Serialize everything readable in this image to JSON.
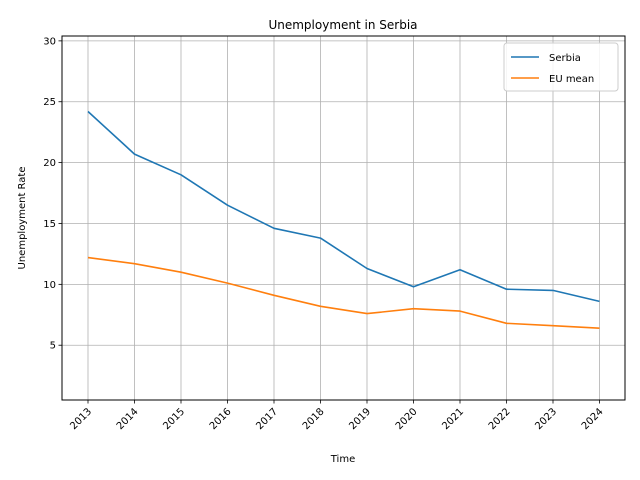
{
  "chart_data": {
    "type": "line",
    "title": "Unemployment in Serbia",
    "xlabel": "Time",
    "ylabel": "Unemployment Rate",
    "categories": [
      "2013",
      "2014",
      "2015",
      "2016",
      "2017",
      "2018",
      "2019",
      "2020",
      "2021",
      "2022",
      "2023",
      "2024"
    ],
    "yticks": [
      5,
      10,
      15,
      20,
      25,
      30
    ],
    "ylim": [
      0.5,
      30.4
    ],
    "grid": true,
    "legend_position": "top-right",
    "series": [
      {
        "name": "Serbia",
        "color": "#1f77b4",
        "values": [
          24.2,
          20.7,
          19.0,
          16.5,
          14.6,
          13.8,
          11.3,
          9.8,
          11.2,
          9.6,
          9.5,
          8.6
        ]
      },
      {
        "name": "EU mean",
        "color": "#ff7f0e",
        "values": [
          12.2,
          11.7,
          11.0,
          10.1,
          9.1,
          8.2,
          7.6,
          8.0,
          7.8,
          6.8,
          6.6,
          6.4
        ]
      }
    ]
  }
}
